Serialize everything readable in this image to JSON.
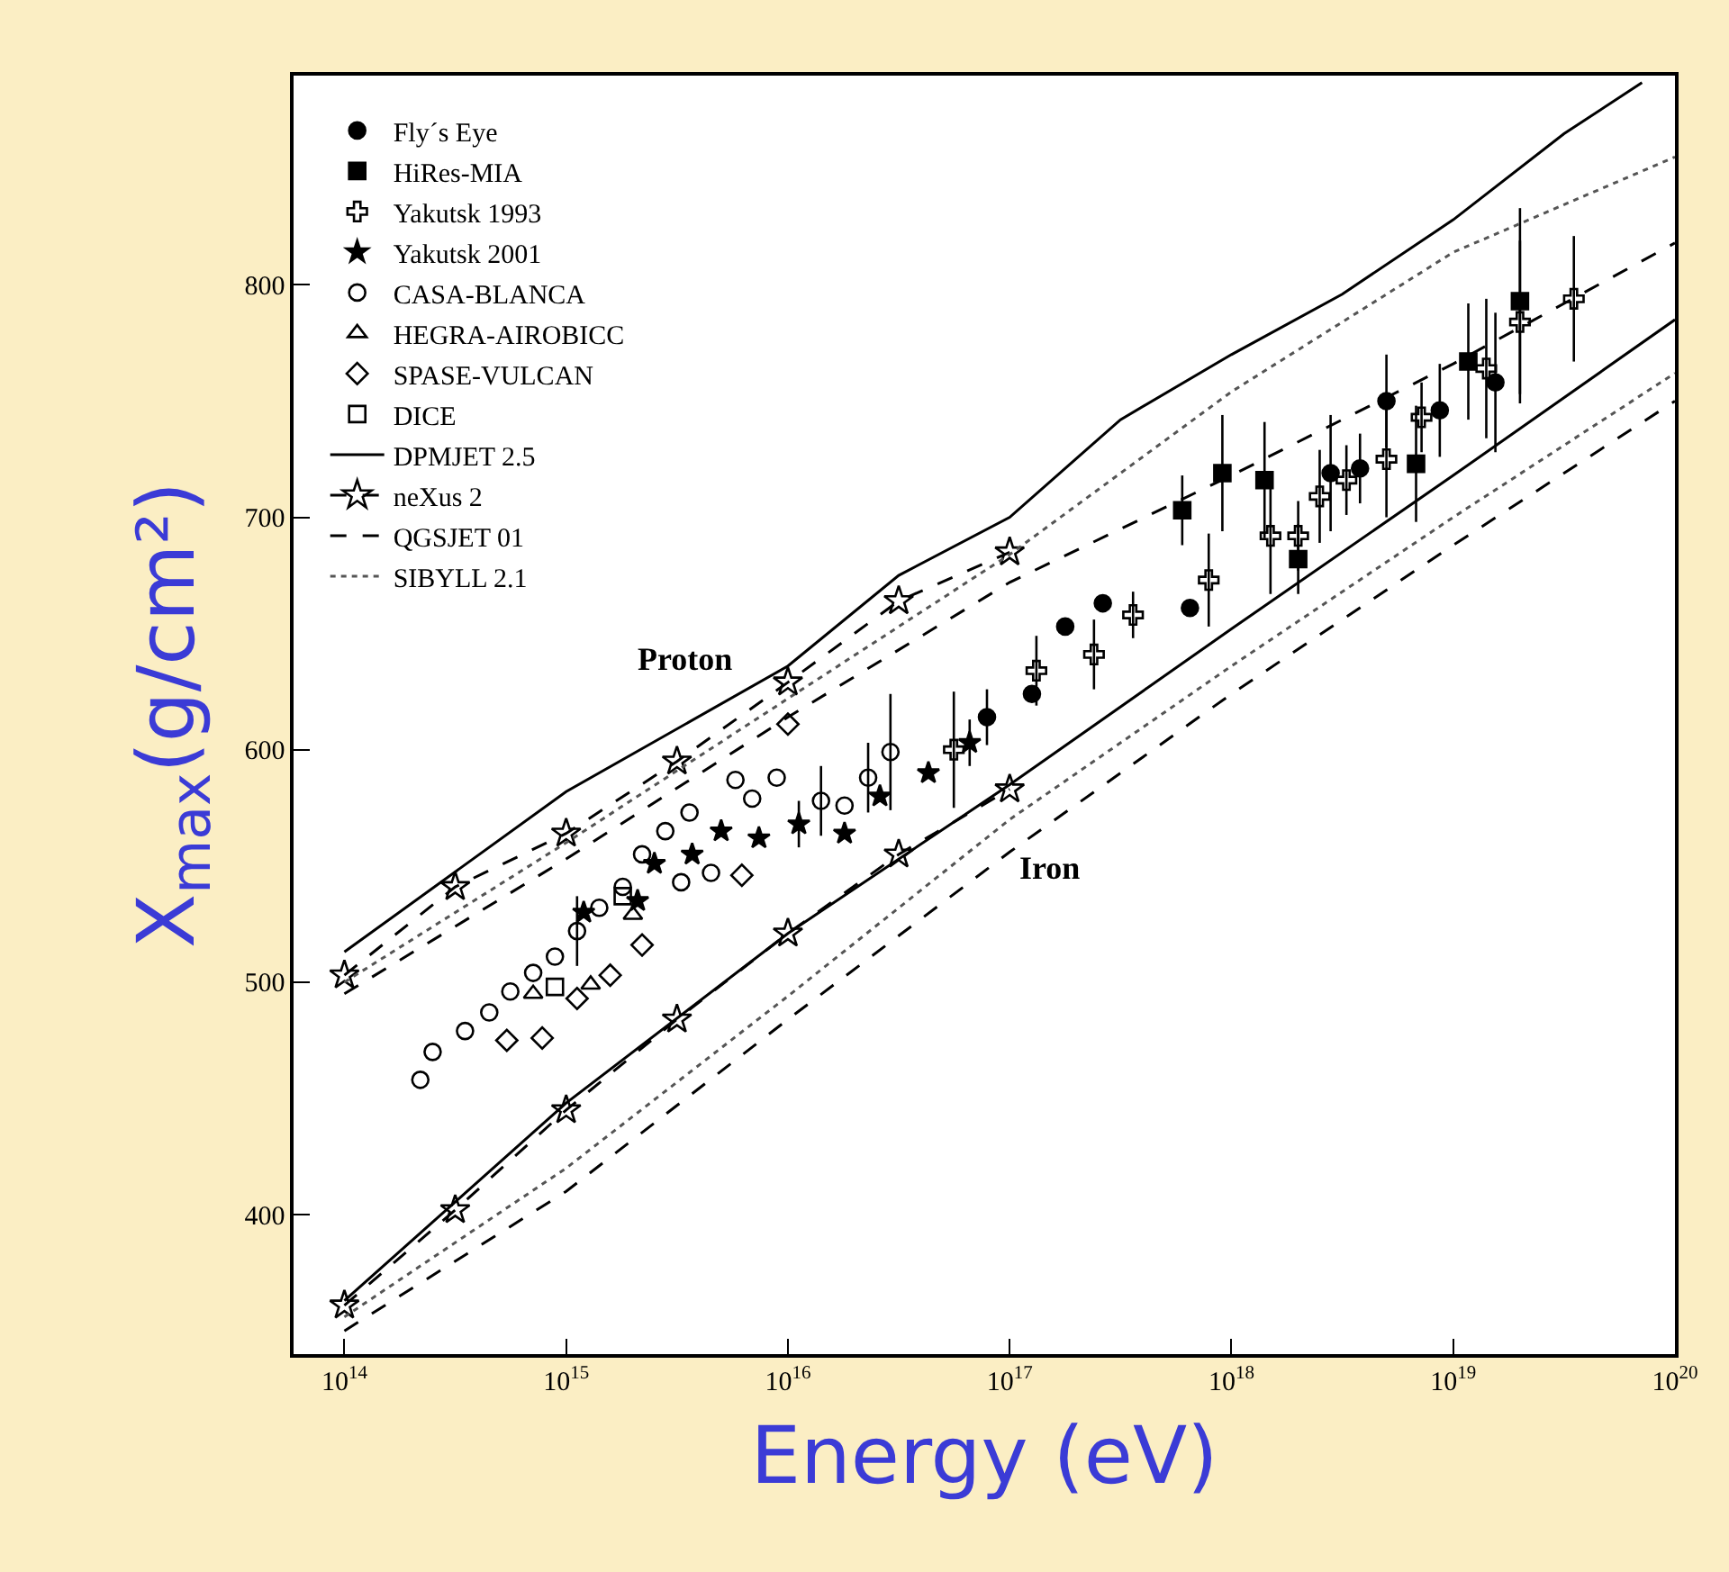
{
  "chart_data": {
    "type": "scatter",
    "xlabel": "Energy (eV)",
    "ylabel": "X$_{max}$(g/cm²)",
    "log": "x",
    "grid": false,
    "legend": "top left",
    "xlim": [
      59000000000000.0,
      1e+20
    ],
    "ylim": [
      340,
      890
    ],
    "xticks": [
      {
        "value": 100000000000000.0,
        "label": "10$^{14}$"
      },
      {
        "value": 1000000000000000.0,
        "label": "10$^{15}$"
      },
      {
        "value": 1e+16,
        "label": "10$^{16}$"
      },
      {
        "value": 1e+17,
        "label": "10$^{17}$"
      },
      {
        "value": 1e+18,
        "label": "10$^{18}$"
      },
      {
        "value": 1e+19,
        "label": "10$^{19}$"
      },
      {
        "value": 1e+20,
        "label": "10$^{20}$"
      }
    ],
    "yticks": [
      400,
      500,
      600,
      700,
      800
    ],
    "annotations": [
      "Proton",
      "Iron"
    ],
    "series": [
      {
        "name": "Fly´s Eye",
        "marker": "circle",
        "color": "#000000",
        "x": [
          7.9e+16,
          1.26e+17,
          1.78e+17,
          2.63e+17,
          6.5e+17,
          2.8e+18,
          3.8e+18,
          5e+18,
          8.7e+18,
          1.55e+19
        ],
        "values": [
          614,
          624,
          653,
          663,
          661,
          719,
          721,
          750,
          746,
          758
        ],
        "errors": [
          12,
          null,
          null,
          null,
          null,
          25,
          15,
          20,
          20,
          30
        ]
      },
      {
        "name": "HiRes-MIA",
        "marker": "square",
        "color": "#000000",
        "x": [
          6e+17,
          9.1e+17,
          1.41e+18,
          2e+18,
          6.8e+18,
          1.17e+19,
          2e+19
        ],
        "values": [
          703,
          719,
          716,
          682,
          723,
          767,
          793
        ],
        "errors": [
          15,
          25,
          25,
          15,
          25,
          25,
          40
        ]
      },
      {
        "name": "Yakutsk 1993",
        "marker": "cross-open",
        "color": "#000000",
        "x": [
          5.6e+16,
          1.32e+17,
          2.4e+17,
          3.6e+17,
          7.9e+17,
          1.5e+18,
          2e+18,
          2.5e+18,
          3.3e+18,
          5e+18,
          7.2e+18,
          1.41e+19,
          2e+19,
          3.5e+19
        ],
        "values": [
          600,
          634,
          641,
          658,
          673,
          692,
          692,
          709,
          716,
          725,
          743,
          764,
          784,
          794
        ],
        "errors": [
          25,
          15,
          15,
          10,
          20,
          25,
          15,
          20,
          15,
          25,
          15,
          30,
          35,
          27
        ]
      },
      {
        "name": "Yakutsk 2001",
        "marker": "star",
        "color": "#000000",
        "x": [
          1200000000000000.0,
          2100000000000000.0,
          2500000000000000.0,
          3700000000000000.0,
          5000000000000000.0,
          7400000000000000.0,
          1.12e+16,
          1.8e+16,
          2.6e+16,
          4.3e+16,
          6.6e+16
        ],
        "values": [
          530,
          535,
          551,
          555,
          565,
          562,
          568,
          564,
          580,
          590,
          603
        ],
        "errors": [
          null,
          null,
          null,
          null,
          null,
          null,
          10,
          null,
          null,
          null,
          10
        ]
      },
      {
        "name": "CASA-BLANCA",
        "marker": "circle-open",
        "color": "#000000",
        "x": [
          220000000000000.0,
          250000000000000.0,
          350000000000000.0,
          450000000000000.0,
          560000000000000.0,
          710000000000000.0,
          890000000000000.0,
          1120000000000000.0,
          1410000000000000.0,
          1800000000000000.0,
          2200000000000000.0,
          2800000000000000.0,
          3300000000000000.0,
          3600000000000000.0,
          4500000000000000.0,
          5800000000000000.0,
          6900000000000000.0,
          8900000000000000.0,
          1.41e+16,
          1.8e+16,
          2.3e+16,
          2.9e+16
        ],
        "values": [
          458,
          470,
          479,
          487,
          496,
          504,
          511,
          522,
          532,
          541,
          555,
          565,
          543,
          573,
          547,
          587,
          579,
          588,
          578,
          576,
          588,
          599
        ],
        "errors": [
          null,
          null,
          null,
          null,
          null,
          null,
          null,
          15,
          null,
          null,
          null,
          null,
          null,
          null,
          null,
          null,
          null,
          null,
          15,
          null,
          15,
          25
        ]
      },
      {
        "name": "HEGRA-AIROBICC",
        "marker": "triangle-up-open",
        "color": "#000000",
        "x": [
          710000000000000.0,
          1290000000000000.0,
          2000000000000000.0
        ],
        "values": [
          495,
          499,
          529
        ]
      },
      {
        "name": "SPASE-VULCAN",
        "marker": "diamond-open",
        "color": "#000000",
        "x": [
          540000000000000.0,
          780000000000000.0,
          1120000000000000.0,
          1580000000000000.0,
          2200000000000000.0,
          6200000000000000.0,
          1e+16
        ],
        "values": [
          475,
          476,
          493,
          503,
          516,
          546,
          611
        ]
      },
      {
        "name": "DICE",
        "marker": "square-open",
        "color": "#000000",
        "x": [
          890000000000000.0,
          1800000000000000.0
        ],
        "values": [
          498,
          537
        ]
      },
      {
        "name": "DPMJET 2.5",
        "type": "line",
        "line_style": "solid",
        "color": "#000000",
        "x": [
          100000000000000.0,
          1000000000000000.0,
          1e+16,
          3.16e+16,
          1e+17,
          3.16e+17,
          1e+18,
          3.16e+18,
          1e+19,
          3.16e+19,
          7.1e+19
        ],
        "values": [
          513,
          582,
          636,
          675,
          700,
          742,
          770,
          796,
          828,
          865,
          887
        ]
      },
      {
        "type": "line",
        "line_style": "solid",
        "color": "#000000",
        "x": [
          100000000000000.0,
          1000000000000000.0,
          1e+16,
          1e+17,
          1e+18,
          1e+19,
          1e+20
        ],
        "values": [
          363,
          448,
          521,
          585,
          652,
          718,
          785
        ]
      },
      {
        "name": "neXus 2",
        "type": "line",
        "line_style": "dashed",
        "marker": "star-open",
        "color": "#000000",
        "x": [
          100000000000000.0,
          316000000000000.0,
          1000000000000000.0,
          3160000000000000.0,
          1e+16,
          3.16e+16,
          1e+17
        ],
        "values": [
          503,
          541,
          564,
          595,
          629,
          664,
          685
        ]
      },
      {
        "type": "line",
        "line_style": "dashed",
        "marker": "star-open",
        "color": "#000000",
        "x": [
          100000000000000.0,
          316000000000000.0,
          1000000000000000.0,
          3160000000000000.0,
          1e+16,
          3.16e+16,
          1e+17
        ],
        "values": [
          361,
          402,
          445,
          484,
          521,
          555,
          583
        ]
      },
      {
        "name": "QGSJET 01",
        "type": "line",
        "line_style": "dashed",
        "color": "#000000",
        "x": [
          100000000000000.0,
          1000000000000000.0,
          1e+16,
          1e+17,
          1e+18,
          1e+19,
          1e+20
        ],
        "values": [
          495,
          553,
          614,
          672,
          718,
          766,
          818
        ]
      },
      {
        "type": "line",
        "line_style": "dashed",
        "color": "#000000",
        "x": [
          100000000000000.0,
          1000000000000000.0,
          1e+16,
          1e+17,
          1e+18,
          1e+19,
          1e+20
        ],
        "values": [
          350,
          410,
          484,
          556,
          624,
          688,
          750
        ]
      },
      {
        "name": "SIBYLL 2.1",
        "type": "line",
        "line_style": "dotted",
        "color": "#555555",
        "x": [
          100000000000000.0,
          1000000000000000.0,
          1e+16,
          1e+17,
          1e+18,
          1e+19,
          1e+20
        ],
        "values": [
          500,
          560,
          622,
          684,
          754,
          814,
          855
        ]
      },
      {
        "type": "line",
        "line_style": "dotted",
        "color": "#555555",
        "x": [
          100000000000000.0,
          1000000000000000.0,
          1e+16,
          1e+17,
          1e+18,
          1e+19,
          1e+20
        ],
        "values": [
          356,
          420,
          494,
          570,
          636,
          700,
          762
        ]
      }
    ]
  }
}
